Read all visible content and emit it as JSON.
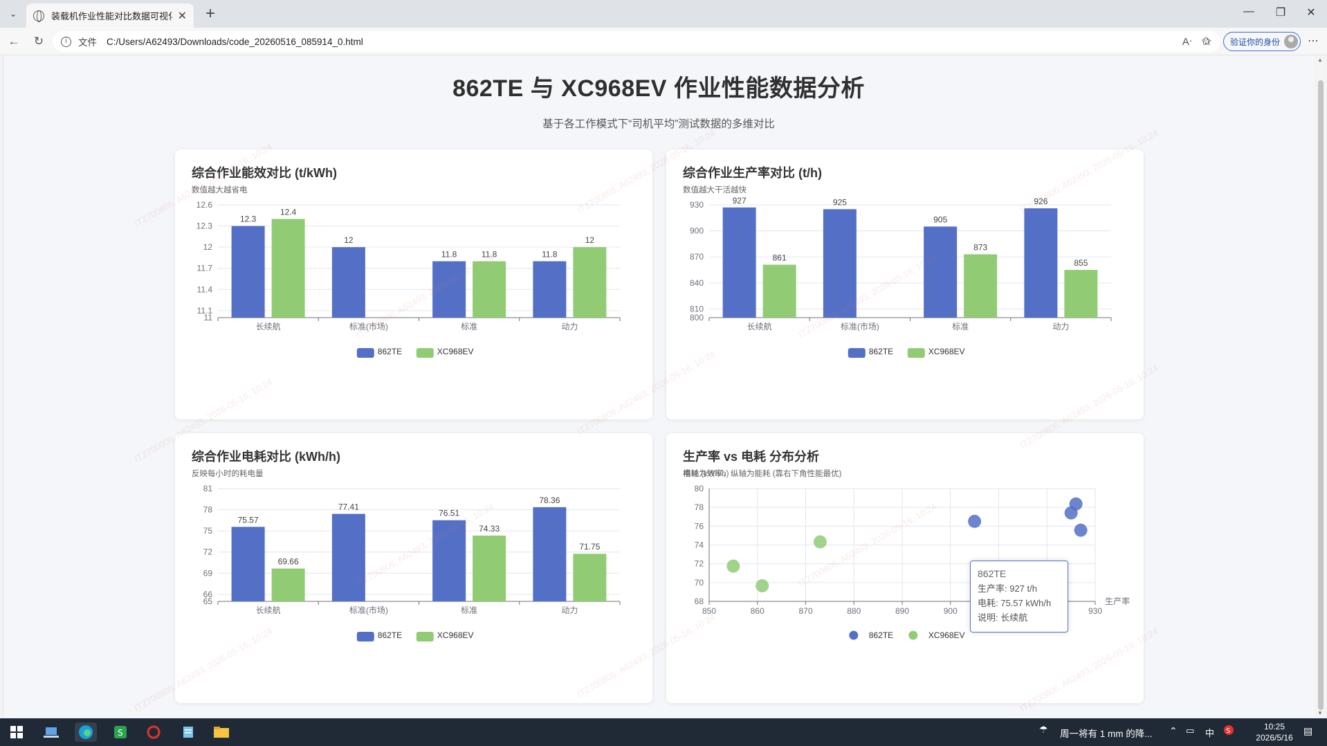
{
  "browser": {
    "tab_title": "装载机作业性能对比数据可视化",
    "url_scheme": "文件",
    "url": "C:/Users/A62493/Downloads/code_20260516_085914_0.html",
    "profile_label": "验证你的身份",
    "icons": [
      "tab-list-icon",
      "globe-icon",
      "close-icon",
      "plus-icon",
      "minimize-icon",
      "restore-icon",
      "window-close-icon",
      "back-icon",
      "refresh-icon",
      "info-icon",
      "read-aloud-icon",
      "star-icon",
      "favorites-icon",
      "avatar-icon",
      "more-icon"
    ]
  },
  "page": {
    "title": "862TE 与 XC968EV 作业性能数据分析",
    "subtitle": "基于各工作模式下“司机平均”测试数据的多维对比"
  },
  "colors": {
    "series1": "#5470c6",
    "series2": "#91cc75",
    "axis": "#6e7079",
    "grid": "#e0e6f1"
  },
  "watermark_text": "ITZ700806, A62493, 2026-05-16, 10:24",
  "chart_data": [
    {
      "type": "bar",
      "title": "综合作业能效对比 (t/kWh)",
      "subtitle": "数值越大越省电",
      "categories": [
        "长续航",
        "标准(市场)",
        "标准",
        "动力"
      ],
      "series": [
        {
          "name": "862TE",
          "values": [
            12.3,
            12,
            11.8,
            11.8
          ],
          "labels": [
            "12.3",
            "12",
            "11.8",
            "11.8"
          ]
        },
        {
          "name": "XC968EV",
          "values": [
            12.4,
            null,
            11.8,
            12
          ],
          "labels": [
            "12.4",
            "",
            "11.8",
            "12"
          ]
        }
      ],
      "ylim": [
        11,
        12.6
      ],
      "yticks": [
        11,
        11.1,
        11.4,
        11.7,
        12,
        12.3,
        12.6
      ],
      "ytick_labels": [
        "11",
        "11.1",
        "11.4",
        "11.7",
        "12",
        "12.3",
        "12.6"
      ],
      "legend": "bottom"
    },
    {
      "type": "bar",
      "title": "综合作业生产率对比 (t/h)",
      "subtitle": "数值越大干活越快",
      "categories": [
        "长续航",
        "标准(市场)",
        "标准",
        "动力"
      ],
      "series": [
        {
          "name": "862TE",
          "values": [
            927,
            925,
            905,
            926
          ],
          "labels": [
            "927",
            "925",
            "905",
            "926"
          ]
        },
        {
          "name": "XC968EV",
          "values": [
            861,
            null,
            873,
            855
          ],
          "labels": [
            "861",
            "",
            "873",
            "855"
          ]
        }
      ],
      "ylim": [
        800,
        930
      ],
      "yticks": [
        800,
        810,
        840,
        870,
        900,
        930
      ],
      "ytick_labels": [
        "800",
        "810",
        "840",
        "870",
        "900",
        "930"
      ],
      "legend": "bottom"
    },
    {
      "type": "bar",
      "title": "综合作业电耗对比 (kWh/h)",
      "subtitle": "反映每小时的耗电量",
      "categories": [
        "长续航",
        "标准(市场)",
        "标准",
        "动力"
      ],
      "series": [
        {
          "name": "862TE",
          "values": [
            75.57,
            77.41,
            76.51,
            78.36
          ],
          "labels": [
            "75.57",
            "77.41",
            "76.51",
            "78.36"
          ]
        },
        {
          "name": "XC968EV",
          "values": [
            69.66,
            null,
            74.33,
            71.75
          ],
          "labels": [
            "69.66",
            "",
            "74.33",
            "71.75"
          ]
        }
      ],
      "ylim": [
        65,
        81
      ],
      "yticks": [
        65,
        66,
        69,
        72,
        75,
        78,
        81
      ],
      "ytick_labels": [
        "65",
        "66",
        "69",
        "72",
        "75",
        "78",
        "81"
      ],
      "legend": "bottom"
    },
    {
      "type": "scatter",
      "title": "生产率 vs 电耗 分布分析",
      "subtitle": "横轴为效率，纵轴为能耗 (靠右下角性能最优)",
      "yaxis_name": "电耗 (kWh/h)",
      "xlabel": "生产率",
      "series": [
        {
          "name": "862TE",
          "points": [
            [
              927,
              75.57
            ],
            [
              925,
              77.41
            ],
            [
              905,
              76.51
            ],
            [
              926,
              78.36
            ]
          ]
        },
        {
          "name": "XC968EV",
          "points": [
            [
              861,
              69.66
            ],
            [
              873,
              74.33
            ],
            [
              855,
              71.75
            ]
          ]
        }
      ],
      "xlim": [
        850,
        930
      ],
      "ylim": [
        68,
        80
      ],
      "xticks": [
        850,
        860,
        870,
        880,
        890,
        900,
        910,
        920,
        930
      ],
      "xtick_labels": [
        "850",
        "860",
        "870",
        "880",
        "890",
        "900",
        "910",
        "920",
        "930"
      ],
      "yticks": [
        68,
        70,
        72,
        74,
        76,
        78,
        80
      ],
      "ytick_labels": [
        "68",
        "70",
        "72",
        "74",
        "76",
        "78",
        "80"
      ],
      "legend": "bottom",
      "tooltip": {
        "name": "862TE",
        "line1": "生产率: 927 t/h",
        "line2": "电耗: 75.57 kWh/h",
        "line3": "说明: 长续航"
      }
    }
  ],
  "taskbar": {
    "weather": "周一将有 1 mm 的降...",
    "ime": "中",
    "time": "10:25",
    "date": "2026/5/16"
  }
}
